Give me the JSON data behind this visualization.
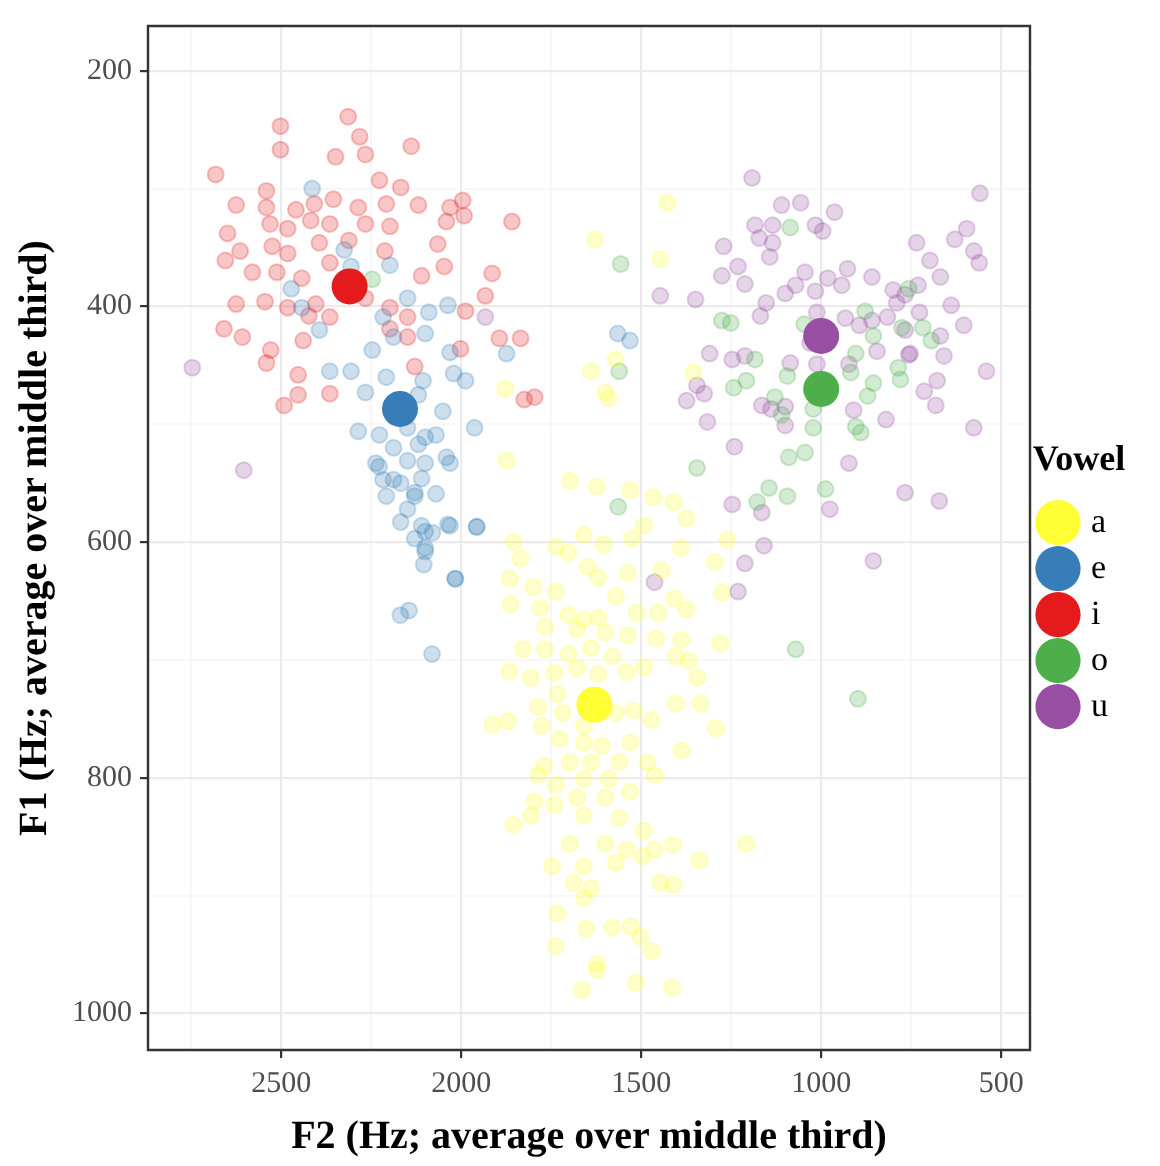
{
  "chart_data": {
    "type": "scatter",
    "xlabel": "F2 (Hz; average over middle third)",
    "ylabel": "F1 (Hz; average over middle third)",
    "legend_title": "Vowel",
    "legend": "right",
    "grid": true,
    "marker": "circle",
    "xlim": [
      2870,
      420
    ],
    "xticks": [
      {
        "value": 2750,
        "label": null
      },
      2500,
      {
        "value": 2250,
        "label": null
      },
      2000,
      {
        "value": 1750,
        "label": null
      },
      1500,
      {
        "value": 1250,
        "label": null
      },
      1000,
      {
        "value": 750,
        "label": null
      },
      500
    ],
    "ylim": [
      1031,
      162
    ],
    "yticks": [
      200,
      {
        "value": 300,
        "label": null
      },
      400,
      {
        "value": 500,
        "label": null
      },
      600,
      {
        "value": 700,
        "label": null
      },
      800,
      {
        "value": 900,
        "label": null
      },
      1000
    ],
    "series": [
      {
        "name": "a",
        "color": "#ffff33",
        "x": [
          1874,
          1698,
          1623,
          1531,
          1466,
          1410,
          1374,
          1492,
          1659,
          1604,
          1525,
          1855,
          1835,
          1737,
          1702,
          1649,
          1619,
          1537,
          1443,
          1390,
          1296,
          1261,
          1276,
          1865,
          1800,
          1737,
          1780,
          1702,
          1659,
          1619,
          1570,
          1512,
          1453,
          1408,
          1374,
          1863,
          1767,
          1678,
          1600,
          1537,
          1459,
          1388,
          1280,
          1829,
          1767,
          1702,
          1639,
          1580,
          1541,
          1492,
          1404,
          1368,
          1345,
          1865,
          1806,
          1741,
          1678,
          1619,
          1733,
          1786,
          1718,
          1659,
          1570,
          1521,
          1472,
          1404,
          1335,
          1292,
          1914,
          1870,
          1776,
          1727,
          1659,
          1610,
          1531,
          1388,
          1769,
          1698,
          1639,
          1561,
          1482,
          1463,
          1786,
          1737,
          1659,
          1590,
          1531,
          1796,
          1678,
          1600,
          1855,
          1806,
          1741,
          1659,
          1561,
          1492,
          1698,
          1600,
          1541,
          1463,
          1412,
          1339,
          1208,
          1747,
          1659,
          1570,
          1496,
          1688,
          1639,
          1659,
          1447,
          1412,
          1733,
          1653,
          1580,
          1529,
          1502,
          1471,
          1737,
          1623,
          1623,
          1665,
          1515,
          1414,
          1629,
          1878,
          1639,
          1600,
          1428,
          1447,
          1571,
          1355,
          1590
        ],
        "values": [
          531,
          548,
          553,
          556,
          562,
          566,
          580,
          586,
          594,
          602,
          597,
          600,
          614,
          604,
          609,
          621,
          630,
          626,
          624,
          605,
          617,
          598,
          643,
          631,
          638,
          642,
          656,
          662,
          666,
          664,
          646,
          660,
          660,
          648,
          657,
          653,
          672,
          674,
          677,
          679,
          682,
          683,
          686,
          691,
          691,
          695,
          690,
          697,
          710,
          706,
          697,
          701,
          715,
          710,
          715,
          711,
          707,
          712,
          729,
          740,
          745,
          756,
          745,
          743,
          751,
          737,
          737,
          758,
          755,
          752,
          756,
          767,
          770,
          773,
          770,
          777,
          790,
          787,
          787,
          787,
          787,
          798,
          798,
          806,
          801,
          801,
          812,
          820,
          817,
          817,
          840,
          832,
          823,
          832,
          834,
          845,
          856,
          856,
          861,
          861,
          857,
          870,
          856,
          875,
          875,
          872,
          867,
          889,
          894,
          902,
          889,
          891,
          915,
          928,
          927,
          926,
          935,
          947,
          943,
          958,
          963,
          980,
          974,
          978,
          343,
          470,
          455,
          473,
          312,
          360,
          445,
          456,
          478
        ]
      },
      {
        "name": "e",
        "color": "#377eb8",
        "x": [
          2414,
          2325,
          2306,
          2472,
          2443,
          2394,
          2198,
          2149,
          2090,
          2037,
          2247,
          2217,
          2188,
          2100,
          2031,
          1874,
          2365,
          2306,
          2266,
          2208,
          2106,
          2021,
          1988,
          2119,
          2051,
          1963,
          2286,
          2227,
          2149,
          2100,
          2070,
          2188,
          2119,
          2237,
          2149,
          2100,
          2041,
          2217,
          2168,
          2110,
          2070,
          2208,
          2129,
          2149,
          2168,
          2100,
          2037,
          1957,
          2129,
          2080,
          2100,
          2104,
          2017,
          2228,
          2188,
          2129,
          2031,
          2110,
          2031,
          1957,
          2100,
          2016,
          2169,
          2145,
          2081,
          1565,
          1531
        ],
        "values": [
          300,
          352,
          366,
          385,
          401,
          420,
          365,
          393,
          405,
          399,
          437,
          409,
          426,
          423,
          439,
          440,
          455,
          455,
          473,
          460,
          463,
          457,
          463,
          475,
          489,
          503,
          506,
          509,
          503,
          511,
          509,
          520,
          517,
          533,
          531,
          533,
          528,
          547,
          550,
          546,
          559,
          561,
          561,
          572,
          583,
          591,
          585,
          587,
          597,
          592,
          608,
          619,
          631,
          536,
          547,
          558,
          533,
          586,
          586,
          587,
          605,
          631,
          662,
          658,
          695,
          423,
          429
        ]
      },
      {
        "name": "i",
        "color": "#e41a1c",
        "x": [
          2502,
          2502,
          2682,
          2314,
          2282,
          2266,
          2349,
          2139,
          2227,
          2168,
          2541,
          2625,
          2541,
          2459,
          2408,
          2355,
          2286,
          2208,
          2119,
          2031,
          1996,
          1859,
          2649,
          2531,
          2482,
          2418,
          2365,
          2266,
          2198,
          2041,
          1992,
          2614,
          2525,
          2482,
          2394,
          2312,
          2212,
          2065,
          2655,
          2580,
          2512,
          2443,
          2365,
          2110,
          2047,
          1914,
          2625,
          2545,
          2482,
          2404,
          2266,
          2198,
          2149,
          1988,
          1933,
          2659,
          2608,
          2529,
          2439,
          2365,
          2198,
          2149,
          2002,
          1894,
          1835,
          2541,
          2453,
          2365,
          2129,
          2492,
          2453,
          1825,
          1796,
          2423
        ],
        "values": [
          247,
          267,
          288,
          239,
          256,
          271,
          273,
          264,
          293,
          299,
          302,
          314,
          316,
          318,
          313,
          309,
          316,
          313,
          314,
          316,
          310,
          328,
          338,
          330,
          334,
          327,
          330,
          330,
          332,
          328,
          323,
          353,
          349,
          355,
          346,
          344,
          353,
          347,
          361,
          371,
          371,
          376,
          363,
          374,
          366,
          372,
          398,
          396,
          401,
          398,
          393,
          401,
          409,
          404,
          391,
          419,
          426,
          437,
          429,
          409,
          419,
          426,
          436,
          427,
          427,
          448,
          458,
          474,
          451,
          484,
          475,
          479,
          477,
          408
        ]
      },
      {
        "name": "o",
        "color": "#4daf4a",
        "x": [
          1086,
          1557,
          1276,
          1251,
          1184,
          1047,
          878,
          855,
          776,
          718,
          694,
          780,
          786,
          1208,
          1243,
          1129,
          1094,
          1110,
          1022,
          1022,
          904,
          890,
          871,
          855,
          918,
          1090,
          1045,
          1345,
          988,
          1094,
          757,
          904,
          2247,
          1561,
          1564,
          1145,
          1178,
          1071,
          898
        ],
        "values": [
          333,
          364,
          412,
          414,
          445,
          415,
          404,
          425,
          418,
          418,
          429,
          462,
          452,
          463,
          469,
          477,
          459,
          492,
          487,
          503,
          502,
          507,
          476,
          465,
          456,
          528,
          524,
          537,
          555,
          561,
          385,
          440,
          377,
          455,
          570,
          554,
          566,
          691,
          733
        ]
      },
      {
        "name": "u",
        "color": "#984ea3",
        "x": [
          1192,
          1110,
          1057,
          963,
          1184,
          1135,
          1016,
          996,
          1271,
          1172,
          1135,
          1143,
          1231,
          1276,
          1212,
          1045,
          1071,
          982,
          927,
          859,
          731,
          698,
          669,
          561,
          576,
          629,
          596,
          559,
          735,
          1447,
          1349,
          1153,
          1100,
          1016,
          943,
          800,
          767,
          639,
          1169,
          1012,
          933,
          894,
          859,
          816,
          767,
          727,
          669,
          604,
          1310,
          1247,
          1212,
          1086,
          1012,
          923,
          845,
          757,
          659,
          541,
          1345,
          1325,
          1374,
          1165,
          1100,
          1139,
          910,
          820,
          714,
          682,
          678,
          576,
          1316,
          1100,
          1241,
          923,
          1247,
          1165,
          976,
          767,
          672,
          1159,
          1212,
          855,
          1031,
          790,
          753,
          2747,
          2604,
          1933,
          1463,
          1231
        ],
        "values": [
          291,
          314,
          312,
          320,
          331,
          331,
          331,
          336,
          349,
          342,
          346,
          358,
          366,
          374,
          381,
          371,
          382,
          376,
          368,
          375,
          382,
          361,
          375,
          363,
          353,
          343,
          334,
          304,
          346,
          391,
          394,
          397,
          389,
          387,
          382,
          386,
          390,
          399,
          408,
          405,
          410,
          416,
          412,
          409,
          420,
          405,
          425,
          416,
          440,
          445,
          442,
          448,
          449,
          449,
          438,
          441,
          442,
          455,
          467,
          474,
          480,
          484,
          485,
          487,
          488,
          496,
          472,
          484,
          463,
          503,
          498,
          501,
          519,
          533,
          568,
          575,
          572,
          558,
          565,
          603,
          618,
          616,
          431,
          397,
          440,
          452,
          539,
          409,
          634,
          642
        ]
      },
      {
        "colors": [
          "#ffff33",
          "#377eb8",
          "#e41a1c",
          "#4daf4a",
          "#984ea3"
        ],
        "x": [
          1630,
          2170,
          2310,
          1000,
          1000
        ],
        "values": [
          738,
          487,
          383,
          470,
          425
        ]
      }
    ]
  }
}
